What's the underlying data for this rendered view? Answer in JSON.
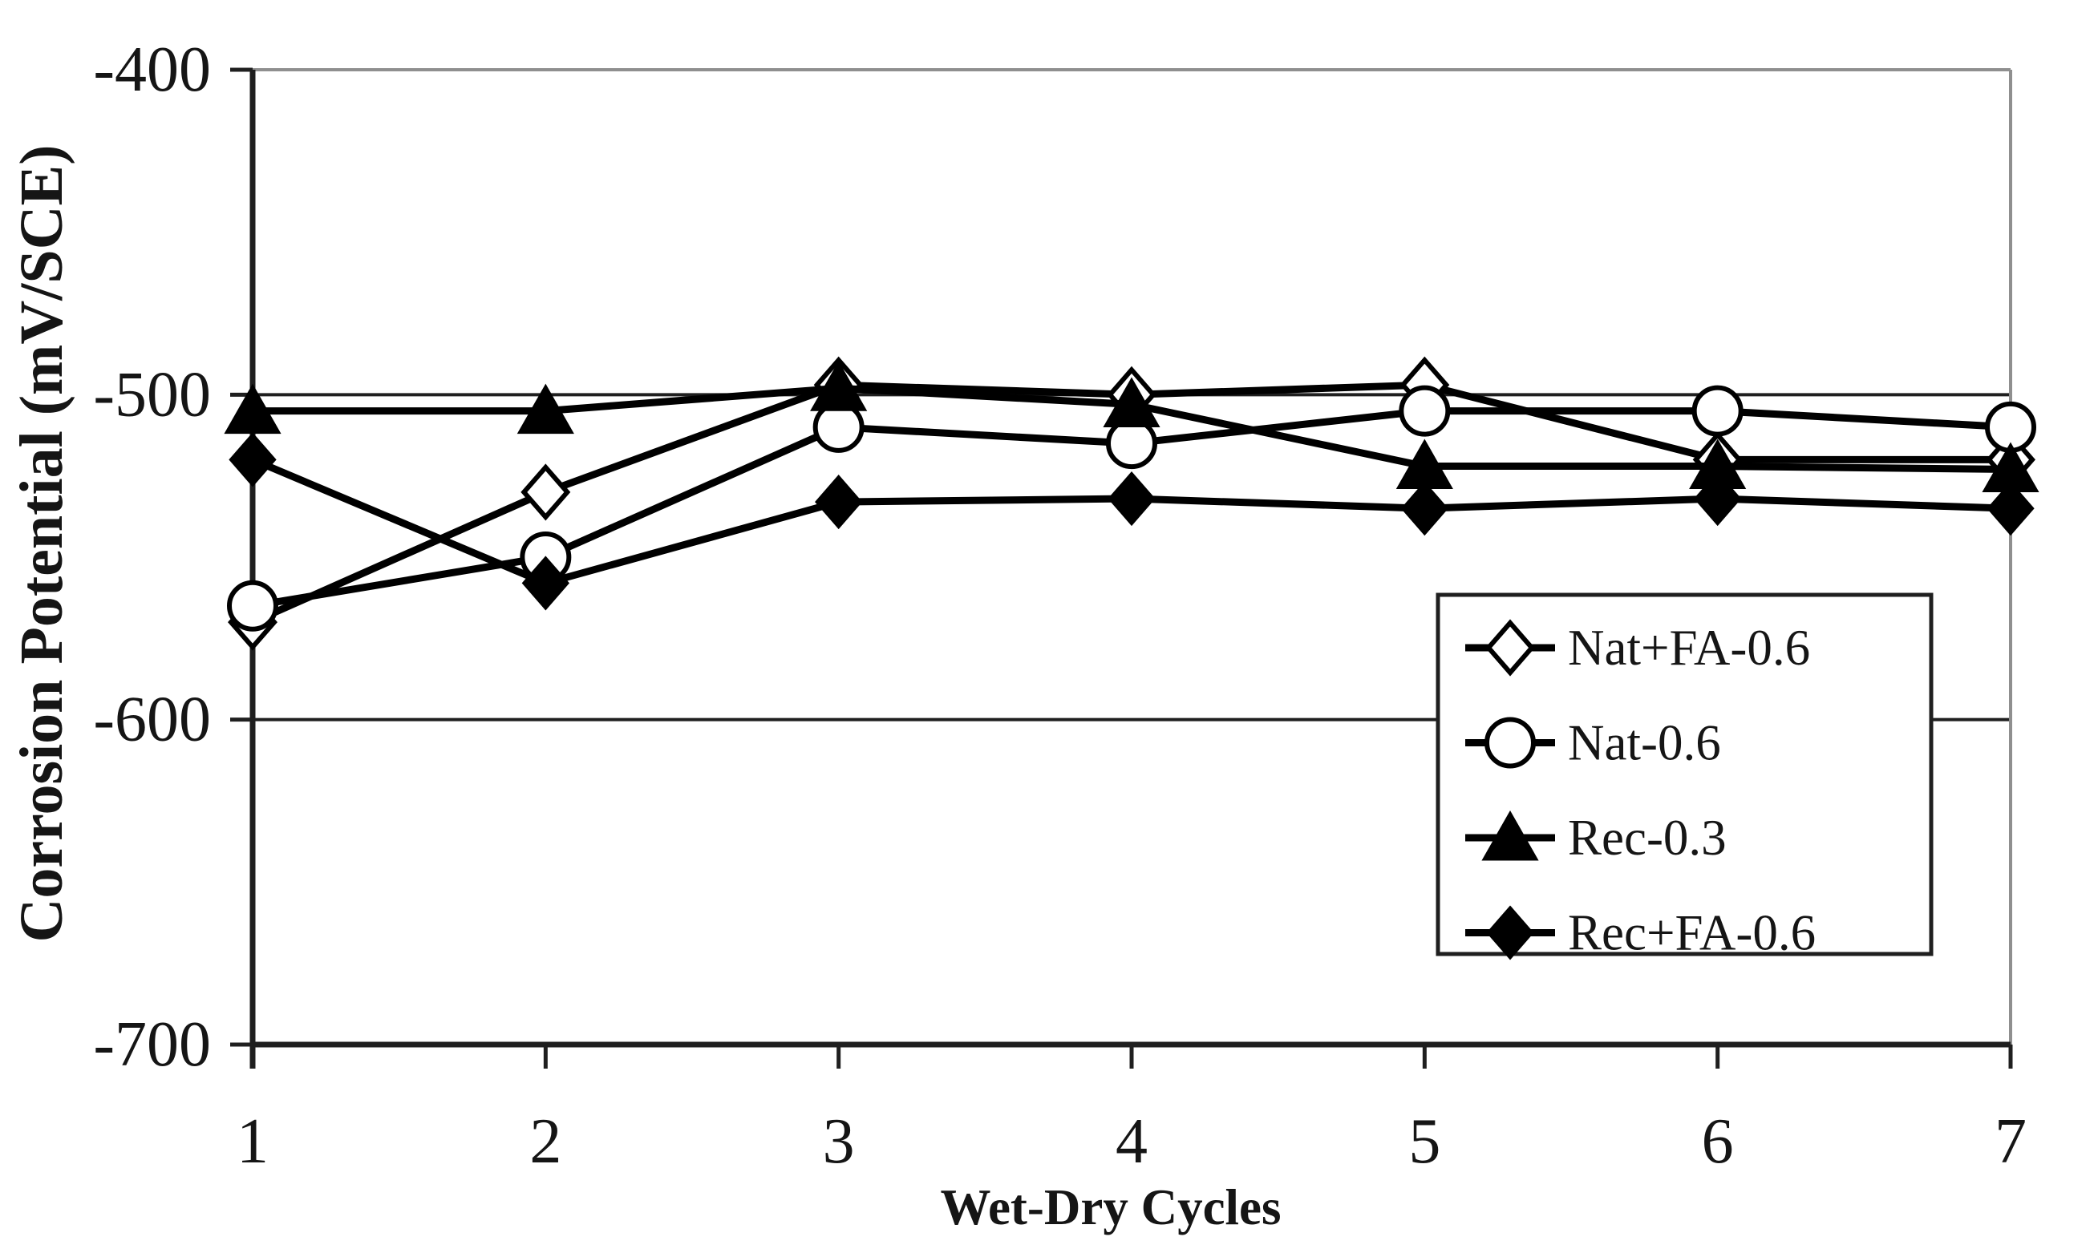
{
  "figure": {
    "style": "black-and-white scientific line chart",
    "background_color": "#ffffff",
    "series_color": "#000000",
    "axis_color": "#1f1f1f",
    "faint_border_color": "#8f8f8f",
    "marker_fill_open": "#ffffff"
  },
  "chart_data": {
    "type": "line",
    "title": "",
    "xlabel": "Wet-Dry Cycles",
    "ylabel": "Corrosion Potential (mV/SCE)",
    "x": [
      1,
      2,
      3,
      4,
      5,
      6,
      7
    ],
    "x_tick_labels": [
      "1",
      "2",
      "3",
      "4",
      "5",
      "6",
      "7"
    ],
    "ylim": [
      -700,
      -400
    ],
    "y_ticks": [
      -400,
      -500,
      -600,
      -700
    ],
    "y_tick_labels": [
      "-400",
      "-500",
      "-600",
      "-700"
    ],
    "grid": "horizontal gridlines at -500 and -600; faint top border at -400; faint right border",
    "legend_position": "inside bottom-right, boxed, opaque white",
    "series": [
      {
        "name": "Nat+FA-0.6",
        "marker": "diamond-open",
        "line": "solid",
        "color": "#000000",
        "values": [
          -570,
          -530,
          -497,
          -500,
          -497,
          -520,
          -520
        ]
      },
      {
        "name": "Nat-0.6",
        "marker": "circle-open",
        "line": "solid",
        "color": "#000000",
        "values": [
          -565,
          -550,
          -510,
          -515,
          -505,
          -505,
          -510
        ]
      },
      {
        "name": "Rec-0.3",
        "marker": "triangle-filled",
        "line": "solid",
        "color": "#000000",
        "values": [
          -505,
          -505,
          -498,
          -503,
          -522,
          -522,
          -523
        ]
      },
      {
        "name": "Rec+FA-0.6",
        "marker": "diamond-filled",
        "line": "solid",
        "color": "#000000",
        "values": [
          -520,
          -558,
          -533,
          -532,
          -535,
          -532,
          -535
        ]
      }
    ]
  }
}
